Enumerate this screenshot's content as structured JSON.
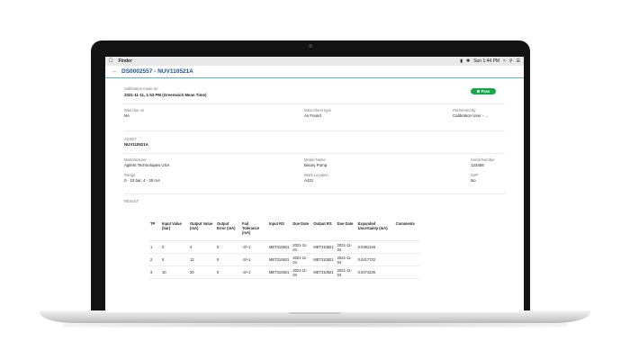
{
  "menubar": {
    "apple_icon": "apple-logo-icon",
    "app_name": "Finder",
    "clock": "Sun 1:44 PM"
  },
  "header": {
    "back_icon": "back-arrow-icon",
    "title": "DS0002557 - NUV110521A"
  },
  "calibration": {
    "made_on_label": "Calibration made on",
    "made_on_value": "2021-11-11, 1:53 PM (Greenwich Mean Time)",
    "status": "Pass",
    "status_color": "#13a84a",
    "was_due_label": "Was due on",
    "was_due_value": "NA",
    "sheet_type_label": "Data Sheet type",
    "sheet_type_value": "As Found",
    "performed_by_label": "Performed By",
    "performed_by_value": "Calibration User - ..."
  },
  "asset": {
    "section_label": "ASSET",
    "id": "NUV110521A",
    "manufacturer_label": "Manufacturer",
    "manufacturer_value": "Agilent Technologies USA",
    "model_label": "Model Name",
    "model_value": "Binary Pump",
    "serial_label": "Serial Number",
    "serial_value": "123456",
    "range_label": "Range",
    "range_value": "0 - 10 bar, 4 - 20 mA",
    "location_label": "Work Location",
    "location_value": "A421",
    "gxp_label": "GxP",
    "gxp_value": "No"
  },
  "result": {
    "section_label": "RESULT",
    "columns": [
      "TP",
      "Input Value (bar)",
      "Output Value (mA)",
      "Output Error (mA)",
      "Fail Tolerance (mA)",
      "Input RS",
      "Due Date",
      "Output RS",
      "Due Date",
      "Expanded Uncertainty (mA)",
      "Comments"
    ],
    "rows": [
      [
        "1",
        "0",
        "4",
        "0",
        "-3/+1",
        "MET310821",
        "2021-11-04",
        "MET310821",
        "2021-11-04",
        "0.0381248",
        ""
      ],
      [
        "2",
        "5",
        "12",
        "0",
        "-3/+1",
        "MET310821",
        "2021-11-04",
        "MET310821",
        "2021-11-04",
        "0.0417732",
        ""
      ],
      [
        "3",
        "10",
        "20",
        "0",
        "-3/+1",
        "MET310821",
        "2021-11-04",
        "MET310821",
        "2021-11-04",
        "0.0474236",
        ""
      ]
    ]
  }
}
